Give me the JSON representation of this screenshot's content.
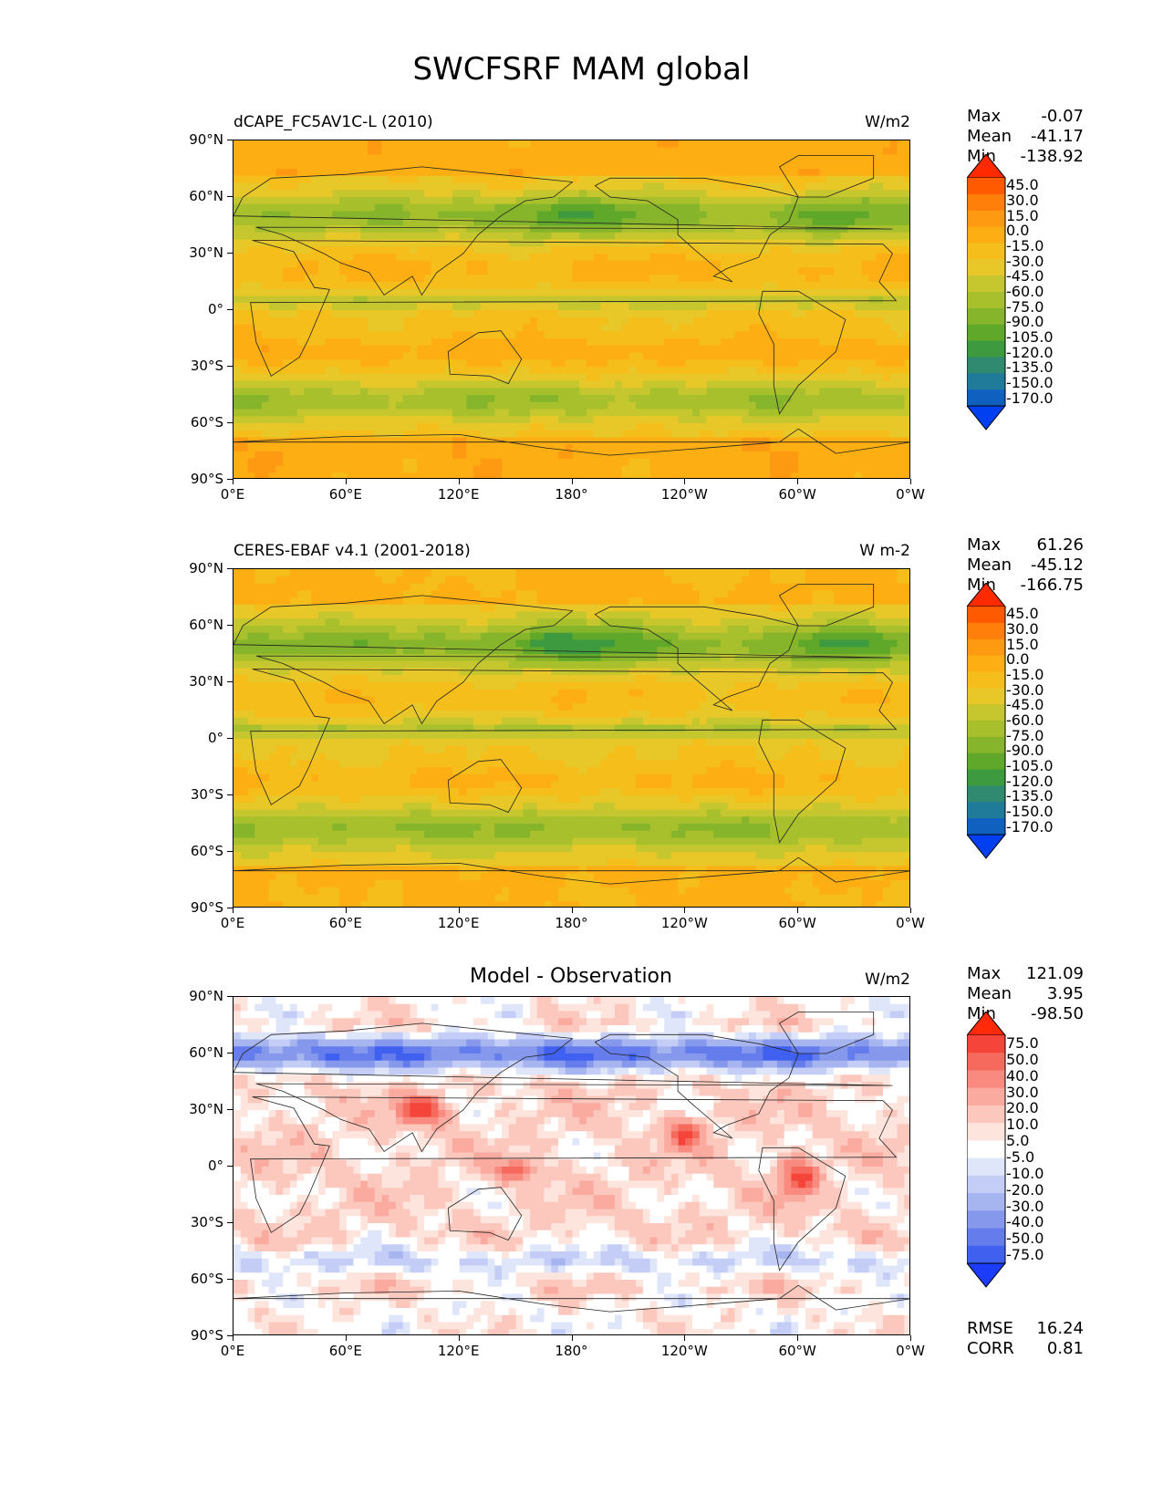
{
  "figure": {
    "title": "SWCFSRF MAM global"
  },
  "panels": [
    {
      "id": "test",
      "title_left": "dCAPE_FC5AV1C-L (2010)",
      "title_center": "",
      "units": "W/m2",
      "stats": {
        "max_label": "Max",
        "max": "-0.07",
        "mean_label": "Mean",
        "mean": "-41.17",
        "min_label": "Min",
        "min": "-138.92"
      },
      "colorbar": {
        "levels": [
          "45.0",
          "30.0",
          "15.0",
          "0.0",
          "-15.0",
          "-30.0",
          "-45.0",
          "-60.0",
          "-75.0",
          "-90.0",
          "-105.0",
          "-120.0",
          "-135.0",
          "-150.0",
          "-170.0"
        ],
        "colors": [
          "#ff2a00",
          "#ff5a00",
          "#ff7f0a",
          "#fe9a12",
          "#fcae12",
          "#f5be1a",
          "#e8c828",
          "#c6c62e",
          "#a8c02c",
          "#86b42a",
          "#5fa82a",
          "#3d9a3e",
          "#2f8a70",
          "#207a9a",
          "#1060c0",
          "#0040f0"
        ]
      },
      "metrics": null
    },
    {
      "id": "ref",
      "title_left": "CERES-EBAF v4.1 (2001-2018)",
      "title_center": "",
      "units": "W m-2",
      "stats": {
        "max_label": "Max",
        "max": "61.26",
        "mean_label": "Mean",
        "mean": "-45.12",
        "min_label": "Min",
        "min": "-166.75"
      },
      "colorbar": {
        "levels": [
          "45.0",
          "30.0",
          "15.0",
          "0.0",
          "-15.0",
          "-30.0",
          "-45.0",
          "-60.0",
          "-75.0",
          "-90.0",
          "-105.0",
          "-120.0",
          "-135.0",
          "-150.0",
          "-170.0"
        ],
        "colors": [
          "#ff2a00",
          "#ff5a00",
          "#ff7f0a",
          "#fe9a12",
          "#fcae12",
          "#f5be1a",
          "#e8c828",
          "#c6c62e",
          "#a8c02c",
          "#86b42a",
          "#5fa82a",
          "#3d9a3e",
          "#2f8a70",
          "#207a9a",
          "#1060c0",
          "#0040f0"
        ]
      },
      "metrics": null
    },
    {
      "id": "diff",
      "title_left": "",
      "title_center": "Model - Observation",
      "units": "W/m2",
      "stats": {
        "max_label": "Max",
        "max": "121.09",
        "mean_label": "Mean",
        "mean": "3.95",
        "min_label": "Min",
        "min": "-98.50"
      },
      "colorbar": {
        "levels": [
          "75.0",
          "50.0",
          "40.0",
          "30.0",
          "20.0",
          "10.0",
          "5.0",
          "-5.0",
          "-10.0",
          "-20.0",
          "-30.0",
          "-40.0",
          "-50.0",
          "-75.0"
        ],
        "colors": [
          "#ff2a0a",
          "#f5443a",
          "#f66a5e",
          "#f88a80",
          "#faaa9e",
          "#fcc8be",
          "#fde4dc",
          "#ffffff",
          "#e0e6fa",
          "#c4cdf5",
          "#a6b4f0",
          "#8598ec",
          "#647cec",
          "#4060f0",
          "#1c3cfc"
        ]
      },
      "metrics": {
        "rmse_label": "RMSE",
        "rmse": "16.24",
        "corr_label": "CORR",
        "corr": "0.81"
      }
    }
  ],
  "axes": {
    "yticks": [
      "90°N",
      "60°N",
      "30°N",
      "0°",
      "30°S",
      "60°S",
      "90°S"
    ],
    "xticks": [
      "0°E",
      "60°E",
      "120°E",
      "180°",
      "120°W",
      "60°W",
      "0°W"
    ]
  }
}
